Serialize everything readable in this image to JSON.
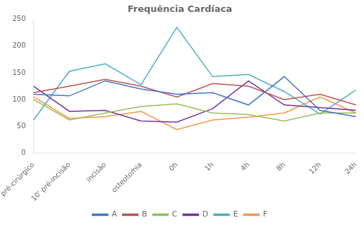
{
  "chart_data": {
    "type": "line",
    "title": "Frequência Cardíaca",
    "categories": [
      "pré-cirúrgico",
      "10' pré-incisão",
      "incisão",
      "osteotomia",
      "0h",
      "1h",
      "4h",
      "8h",
      "12h",
      "24h"
    ],
    "series": [
      {
        "name": "A",
        "color": "#4472C4",
        "values": [
          110,
          107,
          135,
          120,
          110,
          113,
          90,
          143,
          80,
          68
        ]
      },
      {
        "name": "B",
        "color": "#C0504D",
        "values": [
          113,
          125,
          138,
          125,
          105,
          130,
          125,
          100,
          110,
          90
        ]
      },
      {
        "name": "C",
        "color": "#9BBB59",
        "values": [
          100,
          62,
          75,
          87,
          92,
          75,
          72,
          60,
          75,
          75
        ]
      },
      {
        "name": "D",
        "color": "#7030A0",
        "values": [
          125,
          78,
          80,
          60,
          58,
          83,
          135,
          90,
          85,
          80
        ]
      },
      {
        "name": "E",
        "color": "#4BACC6",
        "values": [
          62,
          153,
          167,
          128,
          235,
          143,
          147,
          115,
          73,
          118
        ]
      },
      {
        "name": "F",
        "color": "#F79646",
        "values": [
          105,
          65,
          68,
          78,
          44,
          62,
          67,
          75,
          105,
          75
        ]
      }
    ],
    "ylim": [
      0,
      250
    ],
    "yticks": [
      0,
      50,
      100,
      150,
      200,
      250
    ],
    "grid": false,
    "legend": "bottom"
  }
}
